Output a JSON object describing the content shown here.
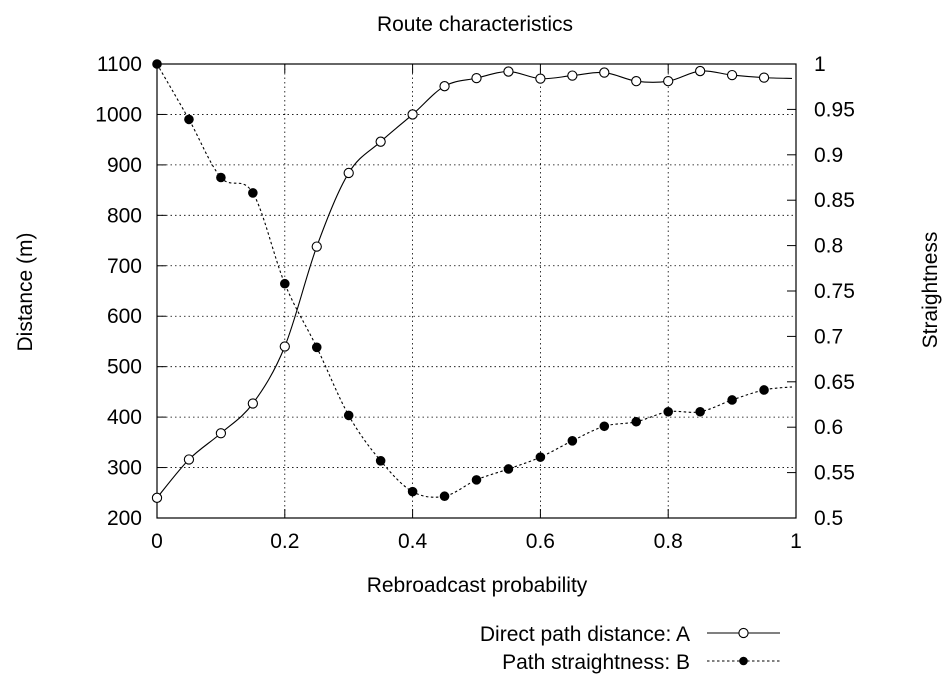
{
  "chart_data": {
    "type": "line",
    "title": "Route characteristics",
    "xlabel": "Rebroadcast probability",
    "ylabel": "Distance (m)",
    "y2label": "Straightness",
    "xlim": [
      0,
      1
    ],
    "ylim": [
      200,
      1100
    ],
    "y2lim": [
      0.5,
      1
    ],
    "x_ticks": [
      "0",
      "0.2",
      "0.4",
      "0.6",
      "0.8",
      "1"
    ],
    "y_ticks": [
      "200",
      "300",
      "400",
      "500",
      "600",
      "700",
      "800",
      "900",
      "1000",
      "1100"
    ],
    "y2_ticks": [
      "0.5",
      "0.55",
      "0.6",
      "0.65",
      "0.7",
      "0.75",
      "0.8",
      "0.85",
      "0.9",
      "0.95",
      "1"
    ],
    "grid": true,
    "legend_position": "bottom-right",
    "series": [
      {
        "name": "Direct path distance: A",
        "axis": "left",
        "marker": "open-circle",
        "line": "solid",
        "color": "#000000",
        "x": [
          0,
          0.05,
          0.1,
          0.15,
          0.2,
          0.25,
          0.3,
          0.35,
          0.4,
          0.45,
          0.5,
          0.55,
          0.6,
          0.65,
          0.7,
          0.75,
          0.8,
          0.85,
          0.9,
          0.95
        ],
        "y": [
          240,
          316,
          368,
          427,
          540,
          738,
          884,
          946,
          1000,
          1056,
          1072,
          1085,
          1071,
          1077,
          1083,
          1066,
          1066,
          1086,
          1078,
          1073
        ]
      },
      {
        "name": "Path straightness: B",
        "axis": "right",
        "marker": "filled-circle",
        "line": "dotted",
        "color": "#000000",
        "x": [
          0,
          0.05,
          0.1,
          0.15,
          0.2,
          0.25,
          0.3,
          0.35,
          0.4,
          0.45,
          0.5,
          0.55,
          0.6,
          0.65,
          0.7,
          0.75,
          0.8,
          0.85,
          0.9,
          0.95
        ],
        "y": [
          1.0,
          0.939,
          0.875,
          0.858,
          0.758,
          0.688,
          0.613,
          0.563,
          0.529,
          0.524,
          0.542,
          0.554,
          0.567,
          0.585,
          0.601,
          0.606,
          0.617,
          0.617,
          0.63,
          0.641
        ]
      }
    ]
  }
}
